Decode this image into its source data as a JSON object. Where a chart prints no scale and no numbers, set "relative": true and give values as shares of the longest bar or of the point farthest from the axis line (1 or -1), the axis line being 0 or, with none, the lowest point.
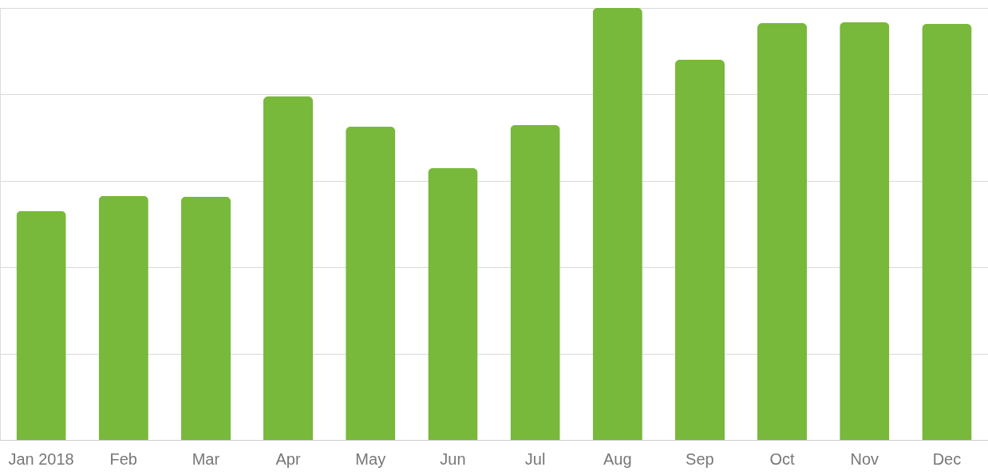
{
  "chart_data": {
    "type": "bar",
    "relative": true,
    "grid": "y",
    "categories": [
      "Jan 2018",
      "Feb",
      "Mar",
      "Apr",
      "May",
      "Jun",
      "Jul",
      "Aug",
      "Sep",
      "Oct",
      "Nov",
      "Dec"
    ],
    "series": [
      {
        "color": "#78b83b",
        "values": [
          0.53,
          0.565,
          0.563,
          0.795,
          0.725,
          0.629,
          0.729,
          1,
          0.88,
          0.965,
          0.967,
          0.963
        ]
      }
    ]
  }
}
